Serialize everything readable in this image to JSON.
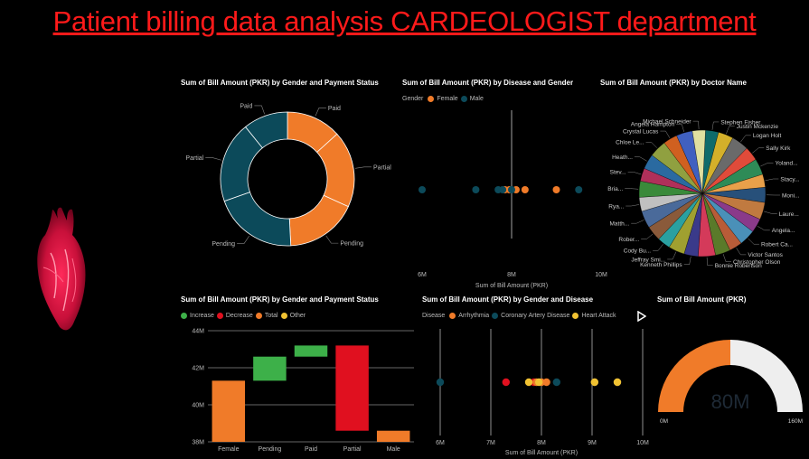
{
  "page_title": "Patient billing data analysis CARDEOLOGIST department",
  "colors": {
    "female": "#f07b29",
    "male": "#0c4a5a",
    "increase": "#3db049",
    "decrease": "#e0101f",
    "total": "#f07b29",
    "other": "#f1c232",
    "title": "#ff1a1a",
    "gauge_rest": "#eeeeee"
  },
  "visuals": {
    "donut": {
      "title": "Sum of Bill Amount (PKR) by Gender and Payment Status"
    },
    "scatter1": {
      "title": "Sum of Bill Amount (PKR) by Disease and Gender",
      "legend_title": "Gender",
      "legend": [
        "Female",
        "Male"
      ]
    },
    "pie": {
      "title": "Sum of Bill Amount (PKR) by Doctor Name"
    },
    "waterfall": {
      "title": "Sum of Bill Amount (PKR) by Gender and Payment Status",
      "legend": [
        "Increase",
        "Decrease",
        "Total",
        "Other"
      ]
    },
    "scatter2": {
      "title": "Sum of Bill Amount (PKR) by Gender and Disease",
      "legend_title": "Disease",
      "legend": [
        "Arrhythmia",
        "Coronary Artery Disease",
        "Heart Attack"
      ]
    },
    "gauge": {
      "title": "Sum of Bill Amount (PKR)"
    }
  },
  "chart_data": [
    {
      "type": "pie",
      "variant": "donut",
      "title": "Sum of Bill Amount (PKR) by Gender and Payment Status",
      "slices": [
        {
          "label": "Paid",
          "group": "Female",
          "value": 0.133
        },
        {
          "label": "Partial",
          "group": "Female",
          "value": 0.185
        },
        {
          "label": "Pending",
          "group": "Female",
          "value": 0.174
        },
        {
          "label": "Paid",
          "group": "Male",
          "value": 0.108
        },
        {
          "label": "Partial",
          "group": "Male",
          "value": 0.196
        },
        {
          "label": "Pending",
          "group": "Male",
          "value": 0.204
        }
      ]
    },
    {
      "type": "scatter",
      "title": "Sum of Bill Amount (PKR) by Disease and Gender",
      "xlabel": "Sum of Bill Amount (PKR)",
      "xticks": [
        "6M",
        "8M",
        "10M"
      ],
      "xlim": [
        6,
        10
      ],
      "series": [
        {
          "name": "Female",
          "x": [
            7.85,
            7.95,
            8.1,
            8.3,
            9.0
          ]
        },
        {
          "name": "Male",
          "x": [
            6.0,
            7.2,
            7.7,
            7.8,
            8.0,
            9.5
          ]
        }
      ]
    },
    {
      "type": "pie",
      "title": "Sum of Bill Amount (PKR) by Doctor Name",
      "labels": [
        "Stephen Fisher",
        "Justin Mckenzie",
        "Logan Holt",
        "Sally Kirk",
        "Yoland...",
        "Stacy...",
        "Moni...",
        "Laure...",
        "Angela...",
        "Robert Ca...",
        "Victor Santos",
        "Christopher Olson",
        "Bonnie Robertson",
        "Kenneth Phillips",
        "Jeffray Smi...",
        "Cody Bu...",
        "Rober...",
        "Matth...",
        "Rya...",
        "Bria...",
        "Stev...",
        "Heath...",
        "Chloe Le...",
        "Crystal Lucas",
        "Angela Hampton",
        "Michael Schneider"
      ],
      "colors": [
        "#0f6b6b",
        "#d4b02a",
        "#6a6a6a",
        "#e04b3a",
        "#2e8b57",
        "#e8a04a",
        "#27507a",
        "#c07a40",
        "#8a3a8a",
        "#4a90b8",
        "#b85c38",
        "#5a7a2a",
        "#d43a5a",
        "#3a3a8a",
        "#a0a030",
        "#2aa0a0",
        "#8a5a3a",
        "#4a6a9a",
        "#c0c0c0",
        "#3a8a3a",
        "#b0305a",
        "#2a6aa0",
        "#90a040",
        "#d06020",
        "#4060c0",
        "#e0e0a0"
      ]
    },
    {
      "type": "bar",
      "variant": "waterfall",
      "title": "Sum of Bill Amount (PKR) by Gender and Payment Status",
      "categories": [
        "Female",
        "Pending",
        "Paid",
        "Partial",
        "Male"
      ],
      "start": [
        38,
        41.3,
        42.6,
        43.2,
        38
      ],
      "end": [
        41.3,
        42.6,
        43.2,
        38.6,
        38.6
      ],
      "kind": [
        "Total",
        "Increase",
        "Increase",
        "Decrease",
        "Total"
      ],
      "yticks": [
        "38M",
        "40M",
        "42M",
        "44M"
      ],
      "ylim": [
        38,
        44
      ]
    },
    {
      "type": "scatter",
      "title": "Sum of Bill Amount (PKR) by Gender and Disease",
      "xlabel": "Sum of Bill Amount (PKR)",
      "xticks": [
        "6M",
        "7M",
        "8M",
        "9M",
        "10M"
      ],
      "xlim": [
        6,
        10
      ],
      "series": [
        {
          "name": "Arrhythmia",
          "x": [
            7.9,
            8.1
          ]
        },
        {
          "name": "Coronary Artery Disease",
          "x": [
            6.0,
            8.3
          ]
        },
        {
          "name": "Heart Attack",
          "x": [
            7.75,
            7.95,
            9.05,
            9.5
          ]
        }
      ],
      "other_colors": [
        "#e0101f",
        "#e0101f",
        "#f07b29",
        "#666666",
        "#666666"
      ],
      "other_x": [
        7.3,
        7.85,
        8.0,
        9.05,
        9.5
      ]
    },
    {
      "type": "gauge",
      "title": "Sum of Bill Amount (PKR)",
      "value_label": "80M",
      "value": 80,
      "min_label": "0M",
      "max_label": "160M",
      "min": 0,
      "max": 160
    }
  ]
}
